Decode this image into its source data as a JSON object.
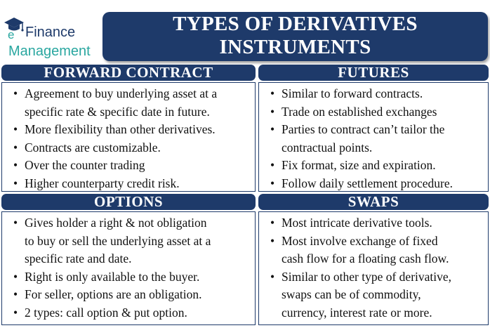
{
  "logo": {
    "line1": "Finance",
    "line2": "Management",
    "icon": "graduation-cap-e-icon",
    "colors": {
      "navy": "#1e3a6a",
      "teal": "#2aa7a0"
    }
  },
  "title": {
    "line1": "TYPES OF DERIVATIVES",
    "line2": "INSTRUMENTS"
  },
  "sections": {
    "forward": {
      "heading": "FORWARD CONTRACT",
      "items": [
        "Agreement to buy underlying asset at a",
        "specific rate & specific date in future.",
        "More flexibility than other derivatives.",
        "Contracts are customizable.",
        "Over the counter trading",
        "Higher counterparty credit risk."
      ]
    },
    "futures": {
      "heading": "FUTURES",
      "items": [
        "Similar to forward contracts.",
        "Trade on established exchanges",
        "Parties to contract can’t tailor the",
        "contractual points.",
        "Fix format, size and expiration.",
        "Follow daily settlement procedure."
      ]
    },
    "options": {
      "heading": "OPTIONS",
      "items": [
        "Gives holder a right & not obligation",
        "to buy or sell the underlying asset at a",
        "specific rate and date.",
        "Right is only available to the buyer.",
        "For seller, options are an obligation.",
        "2 types: call option & put option."
      ]
    },
    "swaps": {
      "heading": "SWAPS",
      "items": [
        "Most intricate derivative tools.",
        "Most involve exchange of fixed",
        "cash flow for a floating cash flow.",
        "Similar to other type of derivative,",
        "swaps can be of commodity,",
        "currency, interest rate or more."
      ]
    }
  },
  "colors": {
    "header_bg": "#1e3a6a",
    "text": "#111111"
  }
}
